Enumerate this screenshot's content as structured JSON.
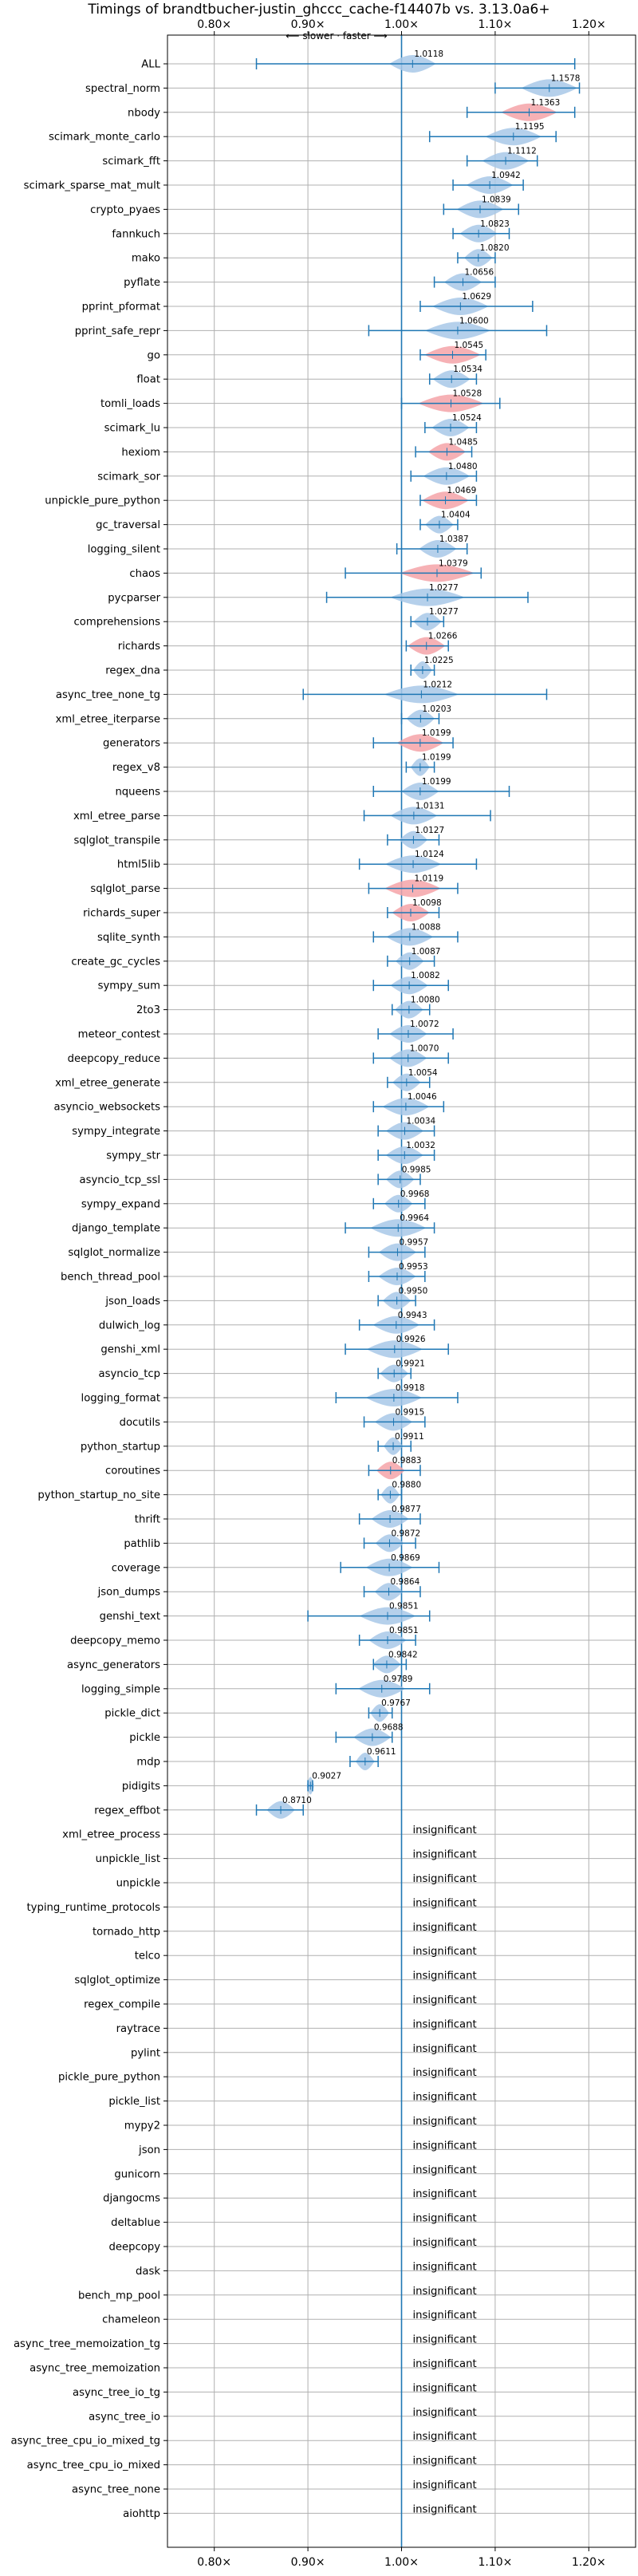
{
  "chart_data": {
    "type": "violin",
    "title": "Timings of brandtbucher-justin_ghccc_cache-f14407b vs. 3.13.0a6+",
    "subtitle": "⟵ slower · faster ⟶",
    "x_ticks": [
      "0.80×",
      "0.90×",
      "1.00×",
      "1.10×",
      "1.20×"
    ],
    "x_tick_values": [
      0.8,
      0.9,
      1.0,
      1.1,
      1.2
    ],
    "xlim": [
      0.75,
      1.25
    ],
    "grid": true,
    "colors": {
      "improved": "#a8c8e8",
      "regressed": "#f4a3a8",
      "line": "#1f77b4",
      "reference": "#1f77b4",
      "grid": "#b0b0b0"
    },
    "insignificant_text": "insignificant",
    "benchmarks": [
      {
        "name": "ALL",
        "value": 1.0118,
        "label": "1.0118",
        "lo": 0.845,
        "hi": 1.185,
        "spread": 0.025,
        "color": "blue"
      },
      {
        "name": "spectral_norm",
        "value": 1.1578,
        "label": "1.1578",
        "lo": 1.1,
        "hi": 1.19,
        "spread": 0.03,
        "color": "blue"
      },
      {
        "name": "nbody",
        "value": 1.1363,
        "label": "1.1363",
        "lo": 1.07,
        "hi": 1.185,
        "spread": 0.03,
        "color": "red"
      },
      {
        "name": "scimark_monte_carlo",
        "value": 1.1195,
        "label": "1.1195",
        "lo": 1.03,
        "hi": 1.165,
        "spread": 0.03,
        "color": "blue"
      },
      {
        "name": "scimark_fft",
        "value": 1.1112,
        "label": "1.1112",
        "lo": 1.07,
        "hi": 1.145,
        "spread": 0.025,
        "color": "blue"
      },
      {
        "name": "scimark_sparse_mat_mult",
        "value": 1.0942,
        "label": "1.0942",
        "lo": 1.055,
        "hi": 1.13,
        "spread": 0.025,
        "color": "blue"
      },
      {
        "name": "crypto_pyaes",
        "value": 1.0839,
        "label": "1.0839",
        "lo": 1.045,
        "hi": 1.125,
        "spread": 0.025,
        "color": "blue"
      },
      {
        "name": "fannkuch",
        "value": 1.0823,
        "label": "1.0823",
        "lo": 1.055,
        "hi": 1.115,
        "spread": 0.02,
        "color": "blue"
      },
      {
        "name": "mako",
        "value": 1.082,
        "label": "1.0820",
        "lo": 1.06,
        "hi": 1.1,
        "spread": 0.015,
        "color": "blue"
      },
      {
        "name": "pyflate",
        "value": 1.0656,
        "label": "1.0656",
        "lo": 1.035,
        "hi": 1.1,
        "spread": 0.02,
        "color": "blue"
      },
      {
        "name": "pprint_pformat",
        "value": 1.0629,
        "label": "1.0629",
        "lo": 1.02,
        "hi": 1.14,
        "spread": 0.03,
        "color": "blue"
      },
      {
        "name": "pprint_safe_repr",
        "value": 1.06,
        "label": "1.0600",
        "lo": 0.965,
        "hi": 1.155,
        "spread": 0.035,
        "color": "blue"
      },
      {
        "name": "go",
        "value": 1.0545,
        "label": "1.0545",
        "lo": 1.02,
        "hi": 1.09,
        "spread": 0.03,
        "color": "red"
      },
      {
        "name": "float",
        "value": 1.0534,
        "label": "1.0534",
        "lo": 1.03,
        "hi": 1.08,
        "spread": 0.02,
        "color": "blue"
      },
      {
        "name": "tomli_loads",
        "value": 1.0528,
        "label": "1.0528",
        "lo": 1.0,
        "hi": 1.105,
        "spread": 0.035,
        "color": "red"
      },
      {
        "name": "scimark_lu",
        "value": 1.0524,
        "label": "1.0524",
        "lo": 1.025,
        "hi": 1.08,
        "spread": 0.02,
        "color": "blue"
      },
      {
        "name": "hexiom",
        "value": 1.0485,
        "label": "1.0485",
        "lo": 1.015,
        "hi": 1.075,
        "spread": 0.02,
        "color": "red"
      },
      {
        "name": "scimark_sor",
        "value": 1.048,
        "label": "1.0480",
        "lo": 1.01,
        "hi": 1.08,
        "spread": 0.025,
        "color": "blue"
      },
      {
        "name": "unpickle_pure_python",
        "value": 1.0469,
        "label": "1.0469",
        "lo": 1.02,
        "hi": 1.08,
        "spread": 0.025,
        "color": "red"
      },
      {
        "name": "gc_traversal",
        "value": 1.0404,
        "label": "1.0404",
        "lo": 1.02,
        "hi": 1.06,
        "spread": 0.015,
        "color": "blue"
      },
      {
        "name": "logging_silent",
        "value": 1.0387,
        "label": "1.0387",
        "lo": 0.995,
        "hi": 1.07,
        "spread": 0.02,
        "color": "blue"
      },
      {
        "name": "chaos",
        "value": 1.0379,
        "label": "1.0379",
        "lo": 0.94,
        "hi": 1.085,
        "spread": 0.04,
        "color": "red"
      },
      {
        "name": "pycparser",
        "value": 1.0277,
        "label": "1.0277",
        "lo": 0.92,
        "hi": 1.135,
        "spread": 0.04,
        "color": "blue"
      },
      {
        "name": "comprehensions",
        "value": 1.0277,
        "label": "1.0277",
        "lo": 1.01,
        "hi": 1.045,
        "spread": 0.015,
        "color": "blue"
      },
      {
        "name": "richards",
        "value": 1.0266,
        "label": "1.0266",
        "lo": 1.005,
        "hi": 1.05,
        "spread": 0.02,
        "color": "red"
      },
      {
        "name": "regex_dna",
        "value": 1.0225,
        "label": "1.0225",
        "lo": 1.01,
        "hi": 1.035,
        "spread": 0.01,
        "color": "blue"
      },
      {
        "name": "async_tree_none_tg",
        "value": 1.0212,
        "label": "1.0212",
        "lo": 0.895,
        "hi": 1.155,
        "spread": 0.04,
        "color": "blue"
      },
      {
        "name": "xml_etree_iterparse",
        "value": 1.0203,
        "label": "1.0203",
        "lo": 1.0,
        "hi": 1.04,
        "spread": 0.015,
        "color": "blue"
      },
      {
        "name": "generators",
        "value": 1.0199,
        "label": "1.0199",
        "lo": 0.97,
        "hi": 1.055,
        "spread": 0.025,
        "color": "red"
      },
      {
        "name": "regex_v8",
        "value": 1.0199,
        "label": "1.0199",
        "lo": 1.005,
        "hi": 1.035,
        "spread": 0.01,
        "color": "blue"
      },
      {
        "name": "nqueens",
        "value": 1.0199,
        "label": "1.0199",
        "lo": 0.97,
        "hi": 1.115,
        "spread": 0.02,
        "color": "blue"
      },
      {
        "name": "xml_etree_parse",
        "value": 1.0131,
        "label": "1.0131",
        "lo": 0.96,
        "hi": 1.095,
        "spread": 0.025,
        "color": "blue"
      },
      {
        "name": "sqlglot_transpile",
        "value": 1.0127,
        "label": "1.0127",
        "lo": 0.985,
        "hi": 1.04,
        "spread": 0.015,
        "color": "blue"
      },
      {
        "name": "html5lib",
        "value": 1.0124,
        "label": "1.0124",
        "lo": 0.955,
        "hi": 1.08,
        "spread": 0.03,
        "color": "blue"
      },
      {
        "name": "sqlglot_parse",
        "value": 1.0119,
        "label": "1.0119",
        "lo": 0.965,
        "hi": 1.06,
        "spread": 0.03,
        "color": "red"
      },
      {
        "name": "richards_super",
        "value": 1.0098,
        "label": "1.0098",
        "lo": 0.985,
        "hi": 1.04,
        "spread": 0.02,
        "color": "red"
      },
      {
        "name": "sqlite_synth",
        "value": 1.0088,
        "label": "1.0088",
        "lo": 0.97,
        "hi": 1.06,
        "spread": 0.025,
        "color": "blue"
      },
      {
        "name": "create_gc_cycles",
        "value": 1.0087,
        "label": "1.0087",
        "lo": 0.985,
        "hi": 1.035,
        "spread": 0.015,
        "color": "blue"
      },
      {
        "name": "sympy_sum",
        "value": 1.0082,
        "label": "1.0082",
        "lo": 0.97,
        "hi": 1.05,
        "spread": 0.02,
        "color": "blue"
      },
      {
        "name": "2to3",
        "value": 1.008,
        "label": "1.0080",
        "lo": 0.99,
        "hi": 1.03,
        "spread": 0.015,
        "color": "blue"
      },
      {
        "name": "meteor_contest",
        "value": 1.0072,
        "label": "1.0072",
        "lo": 0.975,
        "hi": 1.055,
        "spread": 0.02,
        "color": "blue"
      },
      {
        "name": "deepcopy_reduce",
        "value": 1.007,
        "label": "1.0070",
        "lo": 0.97,
        "hi": 1.05,
        "spread": 0.02,
        "color": "blue"
      },
      {
        "name": "xml_etree_generate",
        "value": 1.0054,
        "label": "1.0054",
        "lo": 0.985,
        "hi": 1.03,
        "spread": 0.015,
        "color": "blue"
      },
      {
        "name": "asyncio_websockets",
        "value": 1.0046,
        "label": "1.0046",
        "lo": 0.97,
        "hi": 1.045,
        "spread": 0.025,
        "color": "blue"
      },
      {
        "name": "sympy_integrate",
        "value": 1.0034,
        "label": "1.0034",
        "lo": 0.975,
        "hi": 1.035,
        "spread": 0.02,
        "color": "blue"
      },
      {
        "name": "sympy_str",
        "value": 1.0032,
        "label": "1.0032",
        "lo": 0.975,
        "hi": 1.035,
        "spread": 0.02,
        "color": "blue"
      },
      {
        "name": "asyncio_tcp_ssl",
        "value": 0.9985,
        "label": "0.9985",
        "lo": 0.975,
        "hi": 1.02,
        "spread": 0.015,
        "color": "blue"
      },
      {
        "name": "sympy_expand",
        "value": 0.9968,
        "label": "0.9968",
        "lo": 0.97,
        "hi": 1.025,
        "spread": 0.015,
        "color": "blue"
      },
      {
        "name": "django_template",
        "value": 0.9964,
        "label": "0.9964",
        "lo": 0.94,
        "hi": 1.035,
        "spread": 0.03,
        "color": "blue"
      },
      {
        "name": "sqlglot_normalize",
        "value": 0.9957,
        "label": "0.9957",
        "lo": 0.965,
        "hi": 1.025,
        "spread": 0.02,
        "color": "blue"
      },
      {
        "name": "bench_thread_pool",
        "value": 0.9953,
        "label": "0.9953",
        "lo": 0.965,
        "hi": 1.025,
        "spread": 0.02,
        "color": "blue"
      },
      {
        "name": "json_loads",
        "value": 0.995,
        "label": "0.9950",
        "lo": 0.975,
        "hi": 1.015,
        "spread": 0.015,
        "color": "blue"
      },
      {
        "name": "dulwich_log",
        "value": 0.9943,
        "label": "0.9943",
        "lo": 0.955,
        "hi": 1.035,
        "spread": 0.025,
        "color": "blue"
      },
      {
        "name": "genshi_xml",
        "value": 0.9926,
        "label": "0.9926",
        "lo": 0.94,
        "hi": 1.05,
        "spread": 0.03,
        "color": "blue"
      },
      {
        "name": "asyncio_tcp",
        "value": 0.9921,
        "label": "0.9921",
        "lo": 0.975,
        "hi": 1.01,
        "spread": 0.015,
        "color": "blue"
      },
      {
        "name": "logging_format",
        "value": 0.9918,
        "label": "0.9918",
        "lo": 0.93,
        "hi": 1.06,
        "spread": 0.03,
        "color": "blue"
      },
      {
        "name": "docutils",
        "value": 0.9915,
        "label": "0.9915",
        "lo": 0.96,
        "hi": 1.025,
        "spread": 0.02,
        "color": "blue"
      },
      {
        "name": "python_startup",
        "value": 0.9911,
        "label": "0.9911",
        "lo": 0.975,
        "hi": 1.01,
        "spread": 0.01,
        "color": "blue"
      },
      {
        "name": "coroutines",
        "value": 0.9883,
        "label": "0.9883",
        "lo": 0.965,
        "hi": 1.02,
        "spread": 0.015,
        "color": "red"
      },
      {
        "name": "python_startup_no_site",
        "value": 0.988,
        "label": "0.9880",
        "lo": 0.975,
        "hi": 1.0,
        "spread": 0.01,
        "color": "blue"
      },
      {
        "name": "thrift",
        "value": 0.9877,
        "label": "0.9877",
        "lo": 0.955,
        "hi": 1.02,
        "spread": 0.02,
        "color": "blue"
      },
      {
        "name": "pathlib",
        "value": 0.9872,
        "label": "0.9872",
        "lo": 0.96,
        "hi": 1.015,
        "spread": 0.015,
        "color": "blue"
      },
      {
        "name": "coverage",
        "value": 0.9869,
        "label": "0.9869",
        "lo": 0.935,
        "hi": 1.04,
        "spread": 0.025,
        "color": "blue"
      },
      {
        "name": "json_dumps",
        "value": 0.9864,
        "label": "0.9864",
        "lo": 0.96,
        "hi": 1.02,
        "spread": 0.015,
        "color": "blue"
      },
      {
        "name": "genshi_text",
        "value": 0.9851,
        "label": "0.9851",
        "lo": 0.9,
        "hi": 1.03,
        "spread": 0.03,
        "color": "blue"
      },
      {
        "name": "deepcopy_memo",
        "value": 0.9851,
        "label": "0.9851",
        "lo": 0.955,
        "hi": 1.015,
        "spread": 0.02,
        "color": "blue"
      },
      {
        "name": "async_generators",
        "value": 0.9842,
        "label": "0.9842",
        "lo": 0.97,
        "hi": 1.005,
        "spread": 0.015,
        "color": "blue"
      },
      {
        "name": "logging_simple",
        "value": 0.9789,
        "label": "0.9789",
        "lo": 0.93,
        "hi": 1.03,
        "spread": 0.025,
        "color": "blue"
      },
      {
        "name": "pickle_dict",
        "value": 0.9767,
        "label": "0.9767",
        "lo": 0.965,
        "hi": 0.99,
        "spread": 0.01,
        "color": "blue"
      },
      {
        "name": "pickle",
        "value": 0.9688,
        "label": "0.9688",
        "lo": 0.93,
        "hi": 0.99,
        "spread": 0.02,
        "color": "blue"
      },
      {
        "name": "mdp",
        "value": 0.9611,
        "label": "0.9611",
        "lo": 0.945,
        "hi": 0.975,
        "spread": 0.01,
        "color": "blue"
      },
      {
        "name": "pidigits",
        "value": 0.9027,
        "label": "0.9027",
        "lo": 0.9,
        "hi": 0.905,
        "spread": 0.004,
        "color": "blue"
      },
      {
        "name": "regex_effbot",
        "value": 0.871,
        "label": "0.8710",
        "lo": 0.845,
        "hi": 0.895,
        "spread": 0.015,
        "color": "blue"
      },
      {
        "name": "xml_etree_process",
        "insignificant": true
      },
      {
        "name": "unpickle_list",
        "insignificant": true
      },
      {
        "name": "unpickle",
        "insignificant": true
      },
      {
        "name": "typing_runtime_protocols",
        "insignificant": true
      },
      {
        "name": "tornado_http",
        "insignificant": true
      },
      {
        "name": "telco",
        "insignificant": true
      },
      {
        "name": "sqlglot_optimize",
        "insignificant": true
      },
      {
        "name": "regex_compile",
        "insignificant": true
      },
      {
        "name": "raytrace",
        "insignificant": true
      },
      {
        "name": "pylint",
        "insignificant": true
      },
      {
        "name": "pickle_pure_python",
        "insignificant": true
      },
      {
        "name": "pickle_list",
        "insignificant": true
      },
      {
        "name": "mypy2",
        "insignificant": true
      },
      {
        "name": "json",
        "insignificant": true
      },
      {
        "name": "gunicorn",
        "insignificant": true
      },
      {
        "name": "djangocms",
        "insignificant": true
      },
      {
        "name": "deltablue",
        "insignificant": true
      },
      {
        "name": "deepcopy",
        "insignificant": true
      },
      {
        "name": "dask",
        "insignificant": true
      },
      {
        "name": "bench_mp_pool",
        "insignificant": true
      },
      {
        "name": "chameleon",
        "insignificant": true
      },
      {
        "name": "async_tree_memoization_tg",
        "insignificant": true
      },
      {
        "name": "async_tree_memoization",
        "insignificant": true
      },
      {
        "name": "async_tree_io_tg",
        "insignificant": true
      },
      {
        "name": "async_tree_io",
        "insignificant": true
      },
      {
        "name": "async_tree_cpu_io_mixed_tg",
        "insignificant": true
      },
      {
        "name": "async_tree_cpu_io_mixed",
        "insignificant": true
      },
      {
        "name": "async_tree_none",
        "insignificant": true
      },
      {
        "name": "aiohttp",
        "insignificant": true
      }
    ]
  }
}
